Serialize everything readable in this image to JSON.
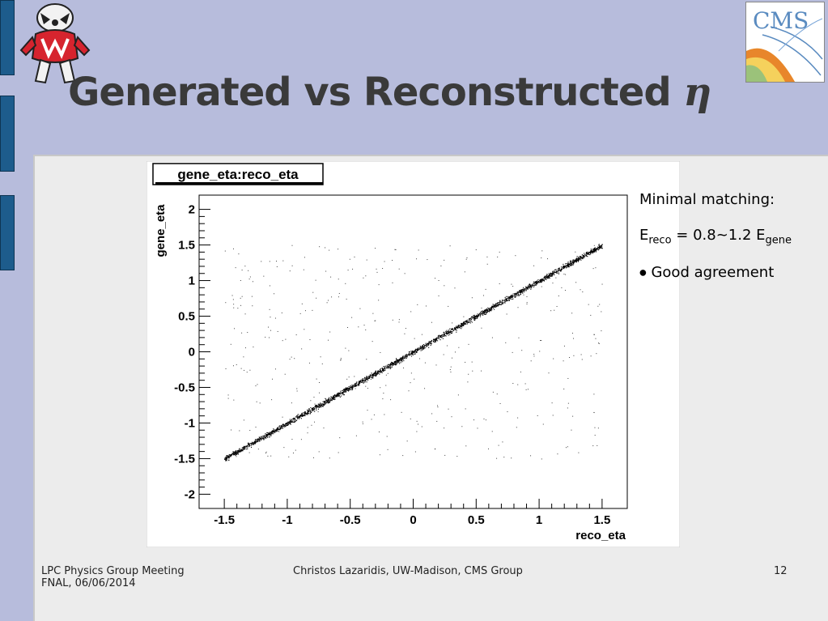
{
  "slide": {
    "title": "Generated vs Reconstructed",
    "title_symbol": "η",
    "page_number": "12"
  },
  "footer": {
    "left_line1": "LPC Physics Group Meeting",
    "left_line2": "FNAL, 06/06/2014",
    "center": "Christos Lazaridis, UW-Madison, CMS Group"
  },
  "notes": {
    "line1": "Minimal matching:",
    "energy_e1": "E",
    "energy_sub1": "reco",
    "energy_mid": " = 0.8~1.2 E",
    "energy_sub2": "gene",
    "bullet": "Good agreement"
  },
  "logos": {
    "cms_text": "CMS"
  },
  "colors": {
    "background": "#b7bcdc",
    "side_bar": "#1d5c8c",
    "title_text": "#3a3a3a",
    "content_bg": "#ececec"
  },
  "chart_data": {
    "type": "scatter",
    "title": "gene_eta:reco_eta",
    "xlabel": "reco_eta",
    "ylabel": "gene_eta",
    "xlim": [
      -1.7,
      1.7
    ],
    "ylim": [
      -2.2,
      2.2
    ],
    "x_ticks": [
      "-1.5",
      "-1",
      "-0.5",
      "0",
      "0.5",
      "1",
      "1.5"
    ],
    "y_ticks": [
      "-2",
      "-1.5",
      "-1",
      "-0.5",
      "0",
      "0.5",
      "1",
      "1.5",
      "2"
    ],
    "grid": false,
    "legend": "none",
    "series": [
      {
        "description_points": "dense band along gene_eta = reco_eta from -1.5 to 1.5",
        "band_x_range": [
          -1.5,
          1.5
        ],
        "band_slope": 1.0,
        "band_width": 0.03
      }
    ],
    "outliers_x_range": [
      -1.5,
      1.5
    ],
    "outliers_y_range": [
      -1.5,
      1.5
    ]
  }
}
